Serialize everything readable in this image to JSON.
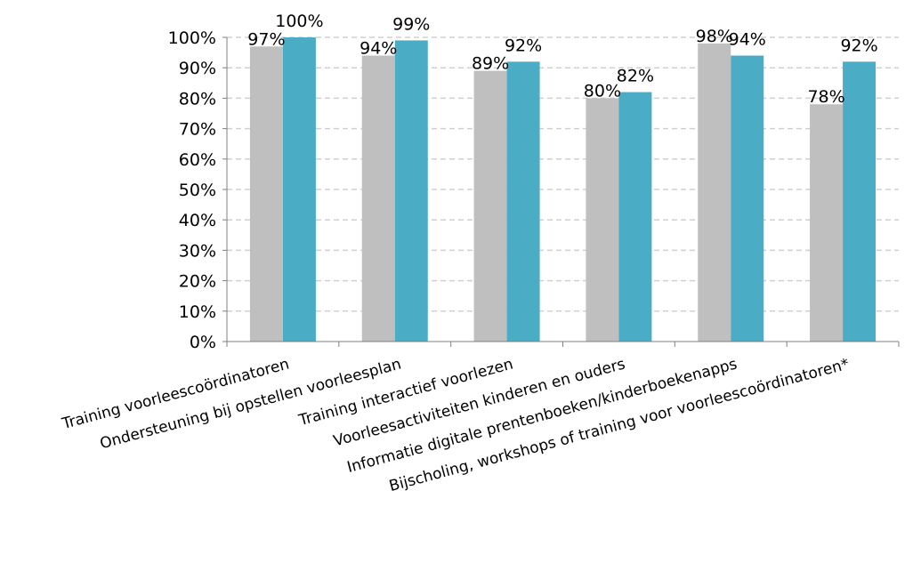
{
  "chart_data": {
    "type": "bar",
    "title": "",
    "xlabel": "",
    "ylabel": "",
    "ylim": [
      0,
      100
    ],
    "y_ticks": [
      "0%",
      "10%",
      "20%",
      "30%",
      "40%",
      "50%",
      "60%",
      "70%",
      "80%",
      "90%",
      "100%"
    ],
    "grid": "horizontal dashed",
    "legend": "none",
    "categories": [
      "Training voorleescoördinatoren",
      "Ondersteuning bij opstellen voorleesplan",
      "Training interactief voorlezen",
      "Voorleesactiviteiten kinderen en ouders",
      "Informatie digitale prentenboeken/kinderboekenapps",
      "Bijscholing, workshops of training voor voorleescoördinatoren*"
    ],
    "series": [
      {
        "values": [
          97,
          94,
          89,
          80,
          98,
          78
        ],
        "labels": [
          "97%",
          "94%",
          "89%",
          "80%",
          "98%",
          "78%"
        ],
        "color": "#bfbfbf"
      },
      {
        "values": [
          100,
          99,
          92,
          82,
          94,
          92
        ],
        "labels": [
          "100%",
          "99%",
          "92%",
          "82%",
          "94%",
          "92%"
        ],
        "color": "#4bacc6"
      }
    ]
  }
}
